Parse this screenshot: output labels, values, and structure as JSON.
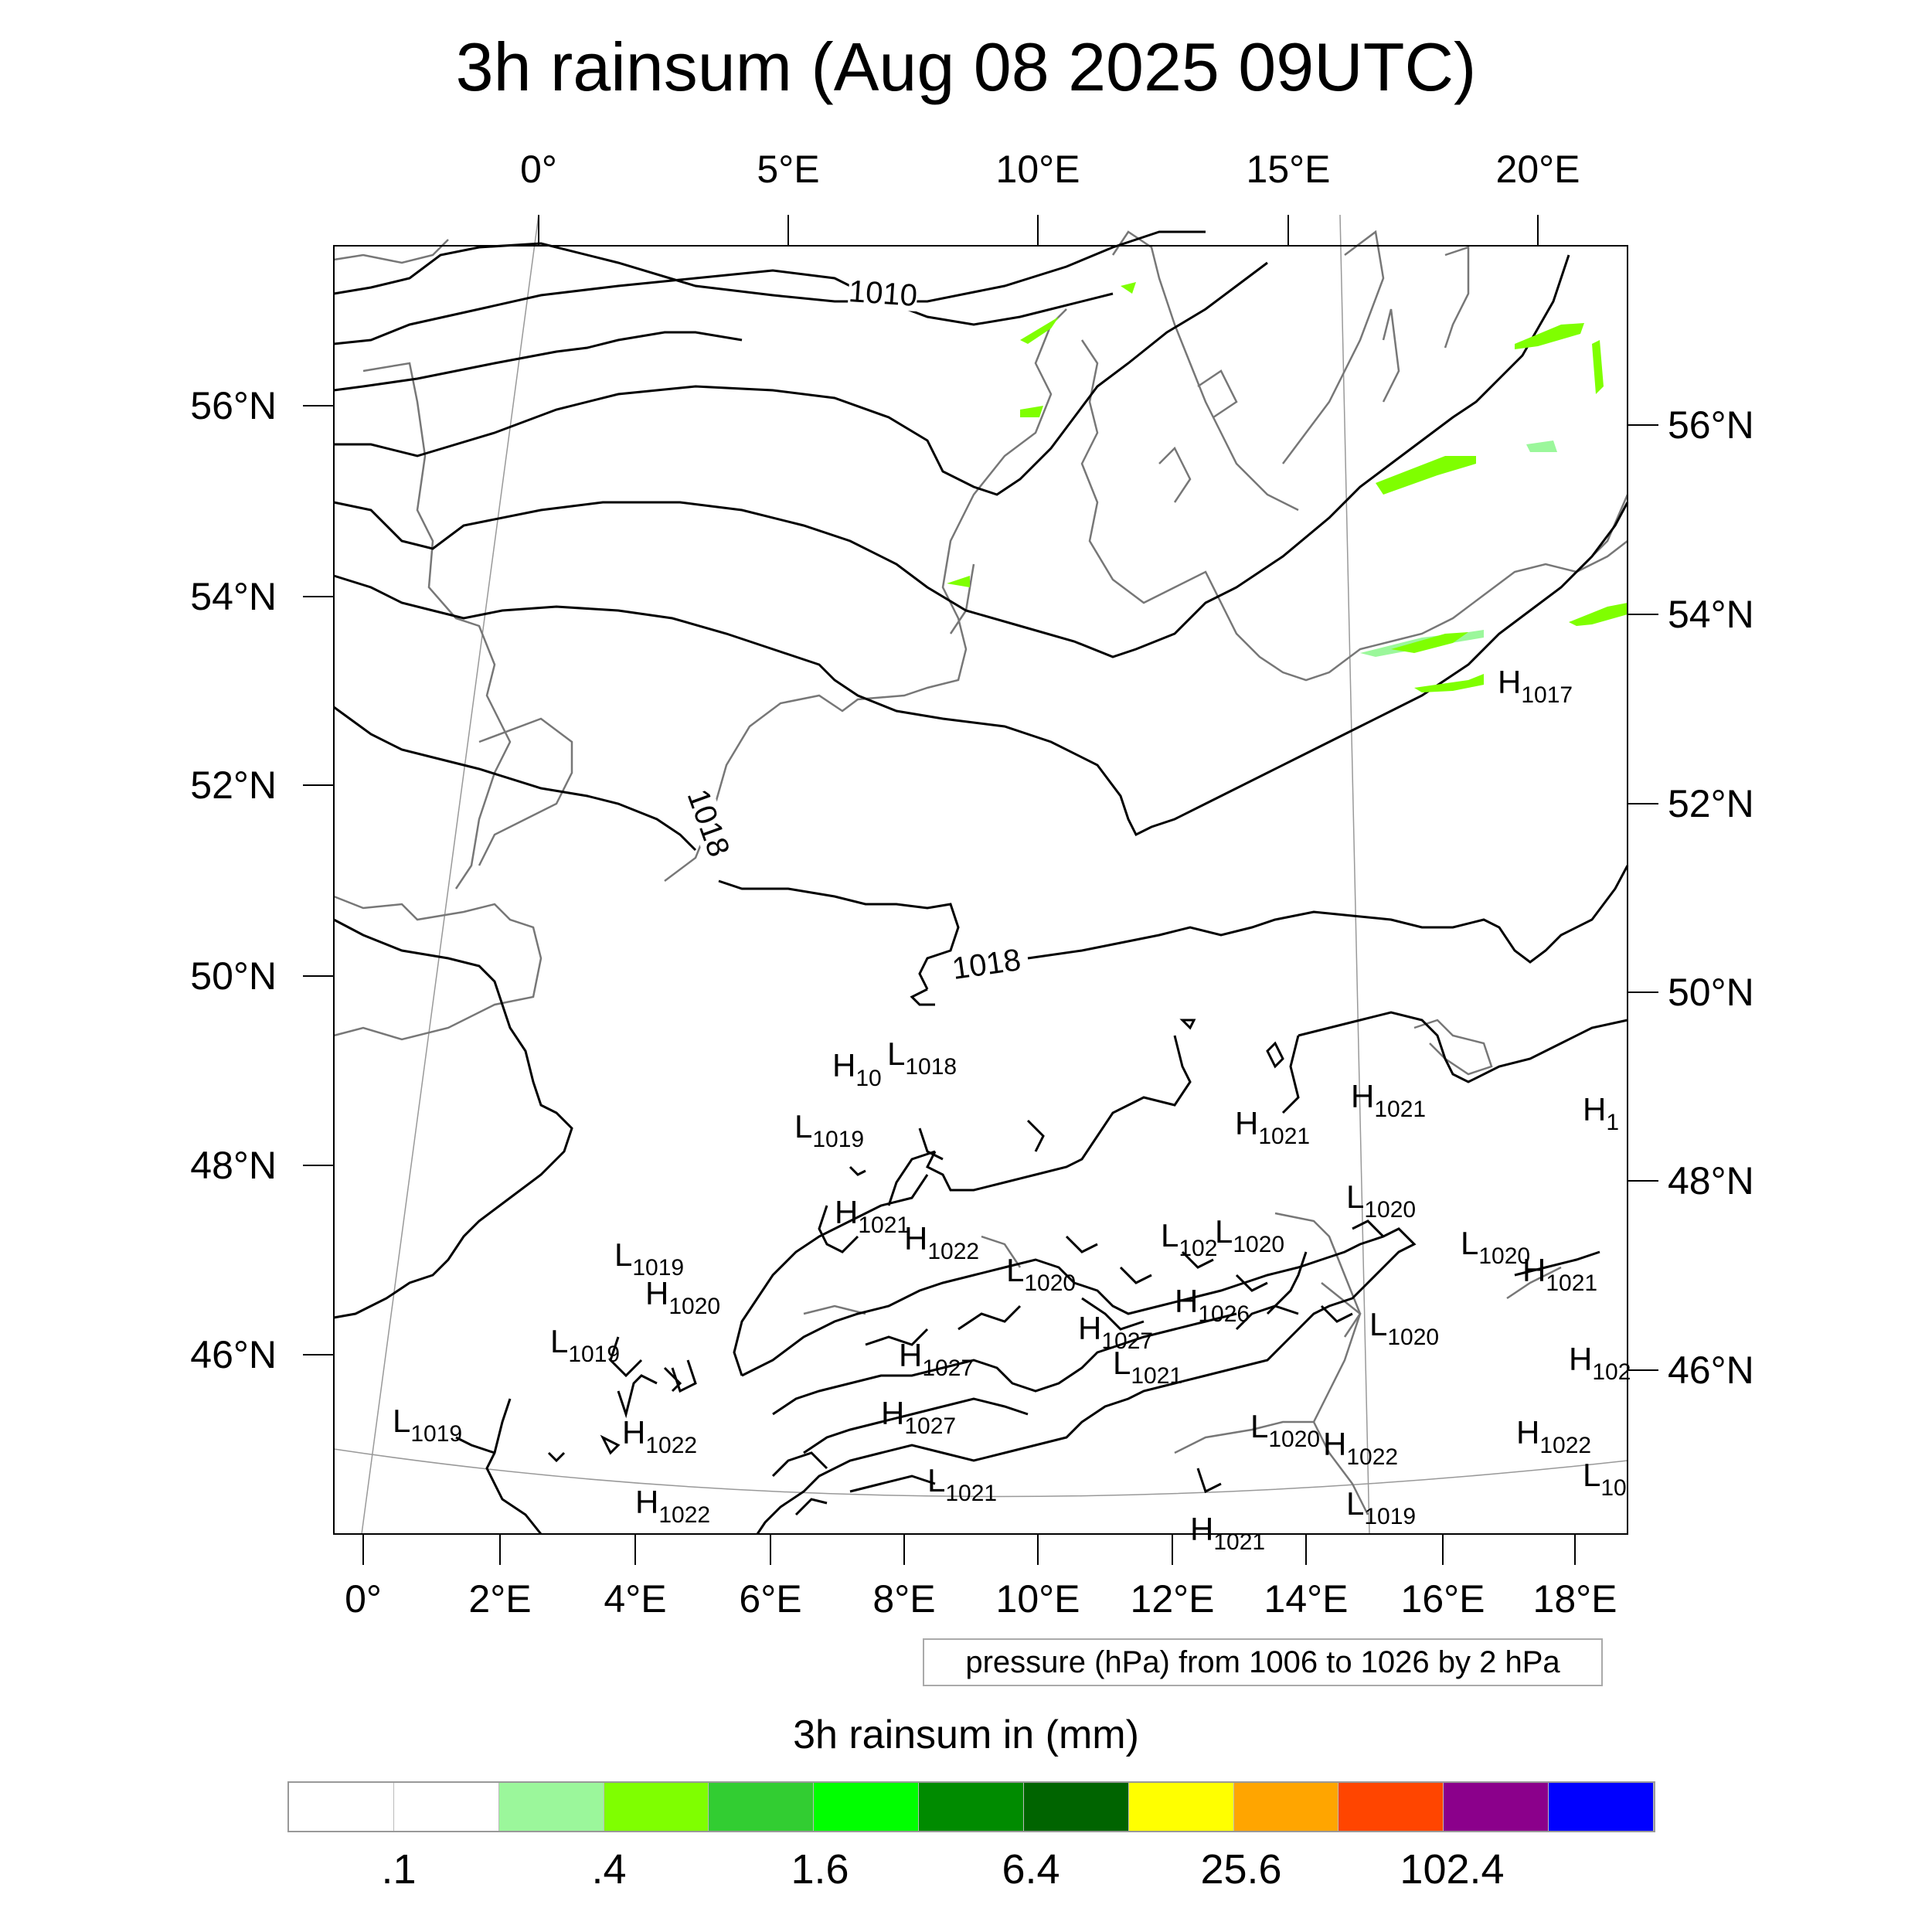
{
  "title": "3h rainsum (Aug 08 2025 09UTC)",
  "top_lon_labels": [
    "0°",
    "5°E",
    "10°E",
    "15°E",
    "20°E"
  ],
  "bottom_lon_labels": [
    "0°",
    "2°E",
    "4°E",
    "6°E",
    "8°E",
    "10°E",
    "12°E",
    "14°E",
    "16°E",
    "18°E"
  ],
  "left_lat_labels": [
    "56°N",
    "54°N",
    "52°N",
    "50°N",
    "48°N",
    "46°N"
  ],
  "right_lat_labels": [
    "56°N",
    "54°N",
    "52°N",
    "50°N",
    "48°N",
    "46°N"
  ],
  "isobar_labels": [
    "1010",
    "1018",
    "1018"
  ],
  "pressure_centers": [
    {
      "t": "H",
      "v": "1017"
    },
    {
      "t": "H",
      "v": "10"
    },
    {
      "t": "L",
      "v": "1018"
    },
    {
      "t": "L",
      "v": "1019"
    },
    {
      "t": "H",
      "v": "1021"
    },
    {
      "t": "H",
      "v": "1021"
    },
    {
      "t": "H",
      "v": "1"
    },
    {
      "t": "H",
      "v": "1021"
    },
    {
      "t": "H",
      "v": "1022"
    },
    {
      "t": "L",
      "v": "1020"
    },
    {
      "t": "L",
      "v": "102"
    },
    {
      "t": "L",
      "v": "1020"
    },
    {
      "t": "L",
      "v": "1020"
    },
    {
      "t": "L",
      "v": "1019"
    },
    {
      "t": "H",
      "v": "1021"
    },
    {
      "t": "L",
      "v": "1020"
    },
    {
      "t": "H",
      "v": "1020"
    },
    {
      "t": "H",
      "v": "1026"
    },
    {
      "t": "L",
      "v": "1020"
    },
    {
      "t": "H",
      "v": "1027"
    },
    {
      "t": "L",
      "v": "1019"
    },
    {
      "t": "H",
      "v": "1027"
    },
    {
      "t": "L",
      "v": "1021"
    },
    {
      "t": "H",
      "v": "102"
    },
    {
      "t": "H",
      "v": "1027"
    },
    {
      "t": "L",
      "v": "1019"
    },
    {
      "t": "H",
      "v": "1022"
    },
    {
      "t": "L",
      "v": "1020"
    },
    {
      "t": "H",
      "v": "1022"
    },
    {
      "t": "H",
      "v": "1022"
    },
    {
      "t": "L",
      "v": "1021"
    },
    {
      "t": "H",
      "v": "1022"
    },
    {
      "t": "L",
      "v": "10"
    },
    {
      "t": "L",
      "v": "1019"
    },
    {
      "t": "H",
      "v": "1021"
    }
  ],
  "contour_note": "pressure (hPa) from 1006 to 1026 by 2 hPa",
  "colorbar": {
    "title": "3h rainsum in (mm)",
    "colors": [
      "#ffffff",
      "#ffffff",
      "#9bf79b",
      "#7fff00",
      "#32cd32",
      "#00ff00",
      "#008b00",
      "#006400",
      "#ffff00",
      "#ffa500",
      "#ff4500",
      "#8b008b",
      "#0000ff"
    ],
    "tick_labels": [
      ".1",
      ".4",
      "1.6",
      "6.4",
      "25.6",
      "102.4"
    ]
  }
}
